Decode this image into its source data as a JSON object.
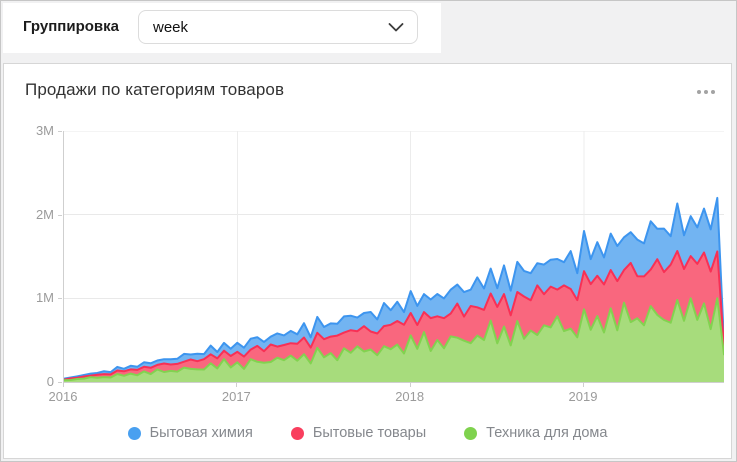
{
  "grouping": {
    "label": "Группировка",
    "value": "week"
  },
  "widget": {
    "title": "Продажи по категориям товаров",
    "menu_icon": "ellipsis-menu"
  },
  "chart_data": {
    "type": "area",
    "stacked": true,
    "title": "Продажи по категориям товаров",
    "x_unit": "week",
    "x_range_years": [
      2016.0,
      2019.81
    ],
    "y_axis_ticks": [
      {
        "label": "0",
        "value_k": 0
      },
      {
        "label": "1M",
        "value_k": 1000
      },
      {
        "label": "2M",
        "value_k": 2000
      },
      {
        "label": "3M",
        "value_k": 3000
      }
    ],
    "x_axis_ticks": [
      {
        "label": "2016",
        "index": 0
      },
      {
        "label": "2017",
        "index": 26
      },
      {
        "label": "2018",
        "index": 52
      },
      {
        "label": "2019",
        "index": 78
      }
    ],
    "ylim_k": [
      0,
      3000
    ],
    "values_unit": "thousands (K) per week, estimated from pixels",
    "grid": true,
    "legend_position": "bottom",
    "series": [
      {
        "name": "Бытовая химия",
        "stack_index": 2,
        "fill": "#72b4f2",
        "stroke": "#3d95ef",
        "dot": "#49a0f0",
        "values_k": [
          10,
          11,
          17,
          18,
          23,
          20,
          35,
          27,
          44,
          30,
          43,
          37,
          53,
          54,
          53,
          52,
          64,
          61,
          93,
          60,
          89,
          61,
          104,
          76,
          93,
          87,
          108,
          106,
          131,
          103,
          111,
          94,
          158,
          115,
          147,
          113,
          171,
          123,
          190,
          146,
          157,
          142,
          194,
          174,
          163,
          158,
          233,
          168,
          276,
          174,
          229,
          152,
          261,
          228,
          215,
          222,
          267,
          236,
          285,
          227,
          293,
          195,
          357,
          255,
          297,
          223,
          343,
          296,
          360,
          306,
          324,
          265,
          354,
          322,
          366,
          278,
          453,
          321,
          481,
          299,
          402,
          322,
          435,
          420,
          393,
          367,
          437,
          395,
          578,
          363,
          520,
          341,
          568,
          402,
          477,
          436,
          525,
          504,
          640,
          40
        ]
      },
      {
        "name": "Бытовые товары",
        "stack_index": 1,
        "fill": "#f9677e",
        "stroke": "#f83055",
        "dot": "#f93e5e",
        "values_k": [
          9,
          19,
          15,
          25,
          19,
          37,
          35,
          37,
          41,
          54,
          51,
          65,
          55,
          76,
          53,
          101,
          76,
          92,
          71,
          112,
          99,
          124,
          108,
          119,
          100,
          136,
          126,
          147,
          114,
          190,
          137,
          209,
          132,
          182,
          148,
          203,
          200,
          189,
          179,
          216,
          198,
          293,
          187,
          270,
          180,
          303,
          216,
          260,
          240,
          292,
          282,
          343,
          268,
          284,
          239,
          393,
          283,
          360,
          273,
          408,
          288,
          444,
          339,
          361,
          324,
          436,
          388,
          360,
          347,
          506,
          362,
          593,
          371,
          488,
          319,
          546,
          474,
          445,
          455,
          546,
          481,
          575,
          458,
          588,
          389,
          707,
          504,
          584,
          436,
          666,
          573,
          693,
          586,
          619,
          505,
          670,
          608,
          688,
          560,
          95
        ]
      },
      {
        "name": "Техника для дома",
        "stack_index": 0,
        "fill": "#a7dc7c",
        "stroke": "#82d250",
        "dot": "#7fd24e",
        "values_k": [
          20,
          24,
          36,
          41,
          58,
          50,
          59,
          54,
          96,
          74,
          100,
          80,
          127,
          94,
          151,
          120,
          133,
          124,
          172,
          157,
          150,
          149,
          223,
          163,
          274,
          175,
          235,
          157,
          273,
          242,
          231,
          239,
          291,
          260,
          316,
          254,
          332,
          222,
          409,
          295,
          345,
          261,
          403,
          349,
          427,
          364,
          388,
          320,
          428,
          392,
          447,
          341,
          557,
          397,
          597,
          371,
          502,
          403,
          545,
          529,
          494,
          464,
          554,
          501,
          734,
          462,
          663,
          437,
          729,
          516,
          614,
          562,
          678,
          652,
          785,
          608,
          637,
          534,
          869,
          624,
          788,
          592,
          881,
          618,
          948,
          716,
          761,
          678,
          907,
          802,
          741,
          709,
          980,
          732,
          1000,
          742,
          940,
          632,
          1000,
          330
        ]
      }
    ]
  },
  "colors": {
    "page_bg": "#f1f1f2",
    "card_bg": "#ffffff",
    "grid_line": "#e9e9e9",
    "axis_line": "#cfcfcf",
    "tick_label": "#9b9b9b",
    "legend_text": "#85888d"
  }
}
